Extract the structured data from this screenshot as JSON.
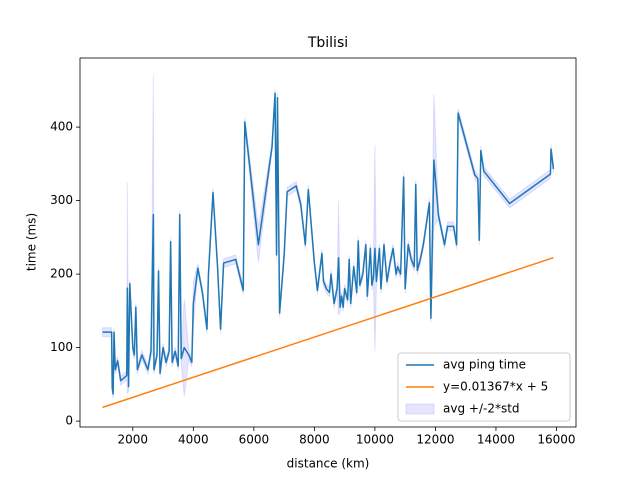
{
  "chart_data": {
    "type": "line",
    "title": "Tbilisi",
    "x_label": "distance (km)",
    "y_label": "time (ms)",
    "xlim": [
      255,
      16645
    ],
    "ylim": [
      -8,
      494
    ],
    "xticks": [
      2000,
      4000,
      6000,
      8000,
      10000,
      12000,
      14000,
      16000
    ],
    "yticks": [
      0,
      100,
      200,
      300,
      400
    ],
    "legend": "lower right",
    "series": [
      {
        "name": "avg ping time",
        "color": "#1f77b4",
        "x": [
          1000,
          1300,
          1320,
          1350,
          1380,
          1420,
          1500,
          1600,
          1800,
          1820,
          1860,
          1900,
          2000,
          2050,
          2100,
          2150,
          2300,
          2500,
          2600,
          2680,
          2700,
          2800,
          2850,
          2900,
          3000,
          3100,
          3200,
          3250,
          3300,
          3400,
          3500,
          3550,
          3600,
          3700,
          3850,
          3950,
          4000,
          4150,
          4300,
          4450,
          4500,
          4650,
          4800,
          4900,
          5000,
          5400,
          5650,
          5700,
          6150,
          6600,
          6700,
          6750,
          6780,
          6850,
          7000,
          7100,
          7400,
          7550,
          7700,
          7800,
          8000,
          8100,
          8250,
          8300,
          8400,
          8500,
          8550,
          8650,
          8750,
          8800,
          8850,
          8900,
          8950,
          9000,
          9100,
          9150,
          9200,
          9300,
          9400,
          9450,
          9500,
          9600,
          9700,
          9750,
          9850,
          9900,
          9950,
          10000,
          10050,
          10150,
          10200,
          10300,
          10400,
          10500,
          10600,
          10700,
          10750,
          10850,
          10950,
          11000,
          11100,
          11200,
          11300,
          11350,
          11400,
          11500,
          11600,
          11800,
          11850,
          11950,
          12100,
          12200,
          12300,
          12400,
          12600,
          12700,
          12750,
          13300,
          13400,
          13450,
          13500,
          13600,
          14450,
          15800,
          15820,
          15900
        ],
        "values": [
          121,
          121,
          45,
          37,
          121,
          70,
          82,
          55,
          62,
          181,
          47,
          187,
          100,
          90,
          155,
          70,
          90,
          70,
          95,
          281,
          70,
          90,
          204,
          65,
          100,
          80,
          95,
          244,
          80,
          95,
          75,
          281,
          85,
          100,
          90,
          80,
          160,
          208,
          175,
          125,
          200,
          311,
          210,
          125,
          215,
          220,
          178,
          407,
          240,
          373,
          446,
          226,
          440,
          147,
          225,
          312,
          320,
          295,
          240,
          315,
          215,
          178,
          228,
          190,
          180,
          175,
          200,
          160,
          180,
          222,
          155,
          170,
          155,
          180,
          165,
          220,
          160,
          210,
          175,
          245,
          185,
          200,
          240,
          170,
          235,
          185,
          195,
          235,
          190,
          235,
          180,
          240,
          190,
          215,
          235,
          200,
          210,
          200,
          332,
          180,
          240,
          220,
          210,
          322,
          205,
          220,
          240,
          297,
          140,
          355,
          280,
          260,
          240,
          265,
          265,
          240,
          419,
          335,
          330,
          246,
          368,
          340,
          296,
          336,
          370,
          343
        ]
      },
      {
        "name": "y=0.01367*x + 5",
        "color": "#ff7f0e",
        "x": [
          1000,
          15900
        ],
        "values": [
          18.67,
          222.35
        ]
      }
    ],
    "band": {
      "name": "avg +/-2*std",
      "color": "#0000ff",
      "std": [
        3,
        3,
        3,
        3,
        3,
        3,
        3,
        3,
        3,
        72,
        3,
        3,
        3,
        3,
        3,
        3,
        3,
        3,
        3,
        95,
        3,
        3,
        3,
        3,
        3,
        3,
        3,
        3,
        3,
        3,
        3,
        3,
        3,
        33,
        3,
        3,
        15,
        3,
        3,
        3,
        3,
        3,
        3,
        3,
        3,
        3,
        3,
        3,
        12,
        3,
        3,
        3,
        3,
        3,
        3,
        3,
        3,
        3,
        3,
        3,
        3,
        3,
        3,
        3,
        3,
        3,
        3,
        3,
        3,
        39,
        3,
        3,
        3,
        3,
        3,
        3,
        3,
        3,
        3,
        3,
        3,
        3,
        3,
        3,
        3,
        3,
        3,
        70,
        3,
        3,
        3,
        3,
        3,
        3,
        3,
        3,
        3,
        3,
        3,
        3,
        3,
        3,
        3,
        3,
        3,
        3,
        3,
        3,
        3,
        45,
        3,
        3,
        3,
        3,
        3,
        3,
        3,
        3,
        3,
        3,
        3,
        3,
        3,
        3,
        3,
        3
      ]
    }
  }
}
